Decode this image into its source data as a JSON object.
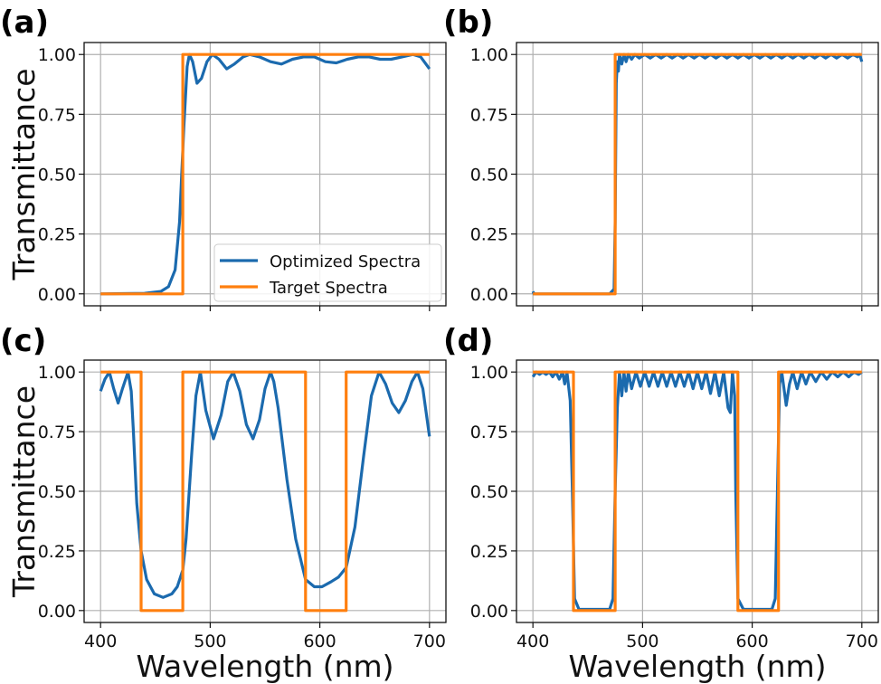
{
  "colors": {
    "optimized": "#1b6aae",
    "target": "#ff7f0e",
    "grid": "#b0b0b0"
  },
  "legend": {
    "placement": "lower-right",
    "panel": "a",
    "entries": [
      "Optimized Spectra",
      "Target Spectra"
    ]
  },
  "chart_data": [
    {
      "panel_label": "(a)",
      "type": "line",
      "ylabel": "Transmittance",
      "xlabel": "",
      "xlim": [
        385,
        715
      ],
      "ylim": [
        -0.05,
        1.05
      ],
      "grid": true,
      "xticks": [
        400,
        500,
        600,
        700
      ],
      "xtick_labels_shown": false,
      "yticks": [
        "0.00",
        "0.25",
        "0.50",
        "0.75",
        "1.00"
      ],
      "series": [
        {
          "name": "Optimized Spectra",
          "points": [
            [
              400,
              0
            ],
            [
              440,
              0.002
            ],
            [
              455,
              0.01
            ],
            [
              462,
              0.03
            ],
            [
              468,
              0.1
            ],
            [
              472,
              0.3
            ],
            [
              476,
              0.7
            ],
            [
              479,
              0.95
            ],
            [
              481,
              1.0
            ],
            [
              484,
              0.97
            ],
            [
              488,
              0.88
            ],
            [
              492,
              0.9
            ],
            [
              497,
              0.97
            ],
            [
              502,
              1.0
            ],
            [
              508,
              0.98
            ],
            [
              515,
              0.94
            ],
            [
              522,
              0.96
            ],
            [
              530,
              0.99
            ],
            [
              536,
              1.0
            ],
            [
              545,
              0.99
            ],
            [
              555,
              0.97
            ],
            [
              565,
              0.96
            ],
            [
              575,
              0.98
            ],
            [
              585,
              0.99
            ],
            [
              595,
              0.99
            ],
            [
              605,
              0.97
            ],
            [
              615,
              0.965
            ],
            [
              625,
              0.98
            ],
            [
              635,
              0.99
            ],
            [
              645,
              0.99
            ],
            [
              655,
              0.98
            ],
            [
              665,
              0.98
            ],
            [
              675,
              0.99
            ],
            [
              685,
              1.0
            ],
            [
              692,
              0.99
            ],
            [
              700,
              0.94
            ]
          ]
        },
        {
          "name": "Target Spectra",
          "points": [
            [
              400,
              0
            ],
            [
              475,
              0
            ],
            [
              475,
              1
            ],
            [
              700,
              1
            ]
          ]
        }
      ]
    },
    {
      "panel_label": "(b)",
      "type": "line",
      "ylabel": "",
      "xlabel": "",
      "xlim": [
        385,
        715
      ],
      "ylim": [
        -0.05,
        1.05
      ],
      "grid": true,
      "xticks": [
        400,
        500,
        600,
        700
      ],
      "xtick_labels_shown": false,
      "yticks": [
        "0.00",
        "0.25",
        "0.50",
        "0.75",
        "1.00"
      ],
      "series": [
        {
          "name": "Optimized Spectra",
          "points": [
            [
              400,
              0.01
            ],
            [
              401,
              0
            ],
            [
              470,
              0
            ],
            [
              474,
              0.02
            ],
            [
              475,
              0.3
            ],
            [
              476,
              0.88
            ],
            [
              477,
              0.97
            ],
            [
              478,
              0.93
            ],
            [
              479,
              1
            ],
            [
              481,
              0.96
            ],
            [
              483,
              1
            ],
            [
              485,
              0.97
            ],
            [
              487,
              1
            ],
            [
              490,
              0.98
            ],
            [
              493,
              1
            ],
            [
              497,
              0.985
            ],
            [
              502,
              1
            ],
            [
              507,
              0.985
            ],
            [
              512,
              1
            ],
            [
              517,
              0.985
            ],
            [
              522,
              1
            ],
            [
              527,
              0.985
            ],
            [
              532,
              1
            ],
            [
              537,
              0.985
            ],
            [
              542,
              1
            ],
            [
              547,
              0.985
            ],
            [
              552,
              1
            ],
            [
              557,
              0.985
            ],
            [
              562,
              1
            ],
            [
              567,
              0.985
            ],
            [
              572,
              1
            ],
            [
              577,
              0.985
            ],
            [
              582,
              1
            ],
            [
              587,
              0.985
            ],
            [
              592,
              1
            ],
            [
              597,
              0.985
            ],
            [
              602,
              1
            ],
            [
              607,
              0.985
            ],
            [
              612,
              1
            ],
            [
              617,
              0.985
            ],
            [
              622,
              1
            ],
            [
              627,
              0.985
            ],
            [
              632,
              1
            ],
            [
              637,
              0.985
            ],
            [
              642,
              1
            ],
            [
              647,
              0.985
            ],
            [
              652,
              1
            ],
            [
              657,
              0.985
            ],
            [
              662,
              1
            ],
            [
              667,
              0.985
            ],
            [
              672,
              1
            ],
            [
              677,
              0.985
            ],
            [
              682,
              1
            ],
            [
              687,
              0.985
            ],
            [
              692,
              1
            ],
            [
              696,
              0.99
            ],
            [
              698,
              1
            ],
            [
              700,
              0.97
            ]
          ]
        },
        {
          "name": "Target Spectra",
          "points": [
            [
              400,
              0
            ],
            [
              475,
              0
            ],
            [
              475,
              1
            ],
            [
              700,
              1
            ]
          ]
        }
      ]
    },
    {
      "panel_label": "(c)",
      "type": "line",
      "ylabel": "Transmittance",
      "xlabel": "Wavelength (nm)",
      "xlim": [
        385,
        715
      ],
      "ylim": [
        -0.05,
        1.05
      ],
      "grid": true,
      "xticks": [
        400,
        500,
        600,
        700
      ],
      "xtick_labels_shown": true,
      "xtick_labels": [
        "400",
        "500",
        "600",
        "700"
      ],
      "yticks": [
        "0.00",
        "0.25",
        "0.50",
        "0.75",
        "1.00"
      ],
      "series": [
        {
          "name": "Optimized Spectra",
          "points": [
            [
              400,
              0.92
            ],
            [
              404,
              0.97
            ],
            [
              408,
              1.0
            ],
            [
              412,
              0.93
            ],
            [
              416,
              0.87
            ],
            [
              420,
              0.93
            ],
            [
              425,
              1.0
            ],
            [
              428,
              0.92
            ],
            [
              430,
              0.75
            ],
            [
              433,
              0.45
            ],
            [
              437,
              0.25
            ],
            [
              442,
              0.13
            ],
            [
              449,
              0.07
            ],
            [
              457,
              0.055
            ],
            [
              465,
              0.07
            ],
            [
              470,
              0.1
            ],
            [
              475,
              0.17
            ],
            [
              478,
              0.3
            ],
            [
              483,
              0.65
            ],
            [
              487,
              0.9
            ],
            [
              491,
              1.0
            ],
            [
              496,
              0.84
            ],
            [
              503,
              0.72
            ],
            [
              510,
              0.82
            ],
            [
              516,
              0.96
            ],
            [
              521,
              1.0
            ],
            [
              527,
              0.92
            ],
            [
              533,
              0.78
            ],
            [
              539,
              0.72
            ],
            [
              545,
              0.8
            ],
            [
              550,
              0.93
            ],
            [
              555,
              1.0
            ],
            [
              558,
              0.96
            ],
            [
              562,
              0.85
            ],
            [
              570,
              0.55
            ],
            [
              578,
              0.3
            ],
            [
              587,
              0.13
            ],
            [
              595,
              0.1
            ],
            [
              602,
              0.1
            ],
            [
              610,
              0.12
            ],
            [
              617,
              0.14
            ],
            [
              624,
              0.18
            ],
            [
              632,
              0.35
            ],
            [
              640,
              0.65
            ],
            [
              647,
              0.9
            ],
            [
              654,
              1.0
            ],
            [
              660,
              0.95
            ],
            [
              666,
              0.87
            ],
            [
              672,
              0.83
            ],
            [
              678,
              0.88
            ],
            [
              684,
              0.96
            ],
            [
              689,
              1.0
            ],
            [
              694,
              0.93
            ],
            [
              700,
              0.73
            ]
          ]
        },
        {
          "name": "Target Spectra",
          "points": [
            [
              400,
              1
            ],
            [
              437,
              1
            ],
            [
              437,
              0
            ],
            [
              475,
              0
            ],
            [
              475,
              1
            ],
            [
              587,
              1
            ],
            [
              587,
              0
            ],
            [
              624,
              0
            ],
            [
              624,
              1
            ],
            [
              700,
              1
            ]
          ]
        }
      ]
    },
    {
      "panel_label": "(d)",
      "type": "line",
      "ylabel": "",
      "xlabel": "Wavelength (nm)",
      "xlim": [
        385,
        715
      ],
      "ylim": [
        -0.05,
        1.05
      ],
      "grid": true,
      "xticks": [
        400,
        500,
        600,
        700
      ],
      "xtick_labels_shown": true,
      "xtick_labels": [
        "400",
        "500",
        "600",
        "700"
      ],
      "yticks": [
        "0.00",
        "0.25",
        "0.50",
        "0.75",
        "1.00"
      ],
      "series": [
        {
          "name": "Optimized Spectra",
          "points": [
            [
              400,
              0.98
            ],
            [
              403,
              1
            ],
            [
              406,
              0.99
            ],
            [
              409,
              1
            ],
            [
              412,
              0.99
            ],
            [
              415,
              1
            ],
            [
              418,
              0.98
            ],
            [
              421,
              1
            ],
            [
              424,
              0.97
            ],
            [
              427,
              1
            ],
            [
              429,
              0.95
            ],
            [
              431,
              1
            ],
            [
              433,
              0.92
            ],
            [
              434,
              0.88
            ],
            [
              436,
              0.5
            ],
            [
              438,
              0.05
            ],
            [
              442,
              0.005
            ],
            [
              470,
              0.005
            ],
            [
              473,
              0.05
            ],
            [
              475,
              0.5
            ],
            [
              477,
              0.85
            ],
            [
              479,
              1
            ],
            [
              481,
              0.9
            ],
            [
              483,
              1
            ],
            [
              485,
              0.92
            ],
            [
              487,
              1
            ],
            [
              490,
              0.93
            ],
            [
              494,
              1
            ],
            [
              498,
              0.94
            ],
            [
              502,
              1
            ],
            [
              506,
              0.94
            ],
            [
              510,
              1
            ],
            [
              514,
              0.94
            ],
            [
              518,
              1
            ],
            [
              522,
              0.94
            ],
            [
              526,
              1
            ],
            [
              530,
              0.94
            ],
            [
              534,
              1
            ],
            [
              538,
              0.94
            ],
            [
              542,
              1
            ],
            [
              546,
              0.93
            ],
            [
              550,
              1
            ],
            [
              554,
              0.93
            ],
            [
              558,
              1
            ],
            [
              562,
              0.91
            ],
            [
              566,
              1
            ],
            [
              570,
              0.9
            ],
            [
              574,
              1
            ],
            [
              578,
              0.85
            ],
            [
              580,
              0.83
            ],
            [
              582,
              1
            ],
            [
              584,
              0.9
            ],
            [
              585,
              0.5
            ],
            [
              587,
              0.05
            ],
            [
              592,
              0.005
            ],
            [
              618,
              0.005
            ],
            [
              621,
              0.05
            ],
            [
              623,
              0.5
            ],
            [
              625,
              0.95
            ],
            [
              627,
              1
            ],
            [
              631,
              0.86
            ],
            [
              634,
              0.95
            ],
            [
              637,
              1
            ],
            [
              641,
              0.93
            ],
            [
              645,
              1
            ],
            [
              649,
              0.95
            ],
            [
              653,
              1
            ],
            [
              658,
              0.96
            ],
            [
              663,
              1
            ],
            [
              668,
              0.97
            ],
            [
              673,
              1
            ],
            [
              678,
              0.98
            ],
            [
              683,
              1
            ],
            [
              688,
              0.98
            ],
            [
              693,
              1
            ],
            [
              697,
              0.99
            ],
            [
              700,
              1
            ]
          ]
        },
        {
          "name": "Target Spectra",
          "points": [
            [
              400,
              1
            ],
            [
              437,
              1
            ],
            [
              437,
              0
            ],
            [
              475,
              0
            ],
            [
              475,
              1
            ],
            [
              587,
              1
            ],
            [
              587,
              0
            ],
            [
              624,
              0
            ],
            [
              624,
              1
            ],
            [
              700,
              1
            ]
          ]
        }
      ]
    }
  ]
}
